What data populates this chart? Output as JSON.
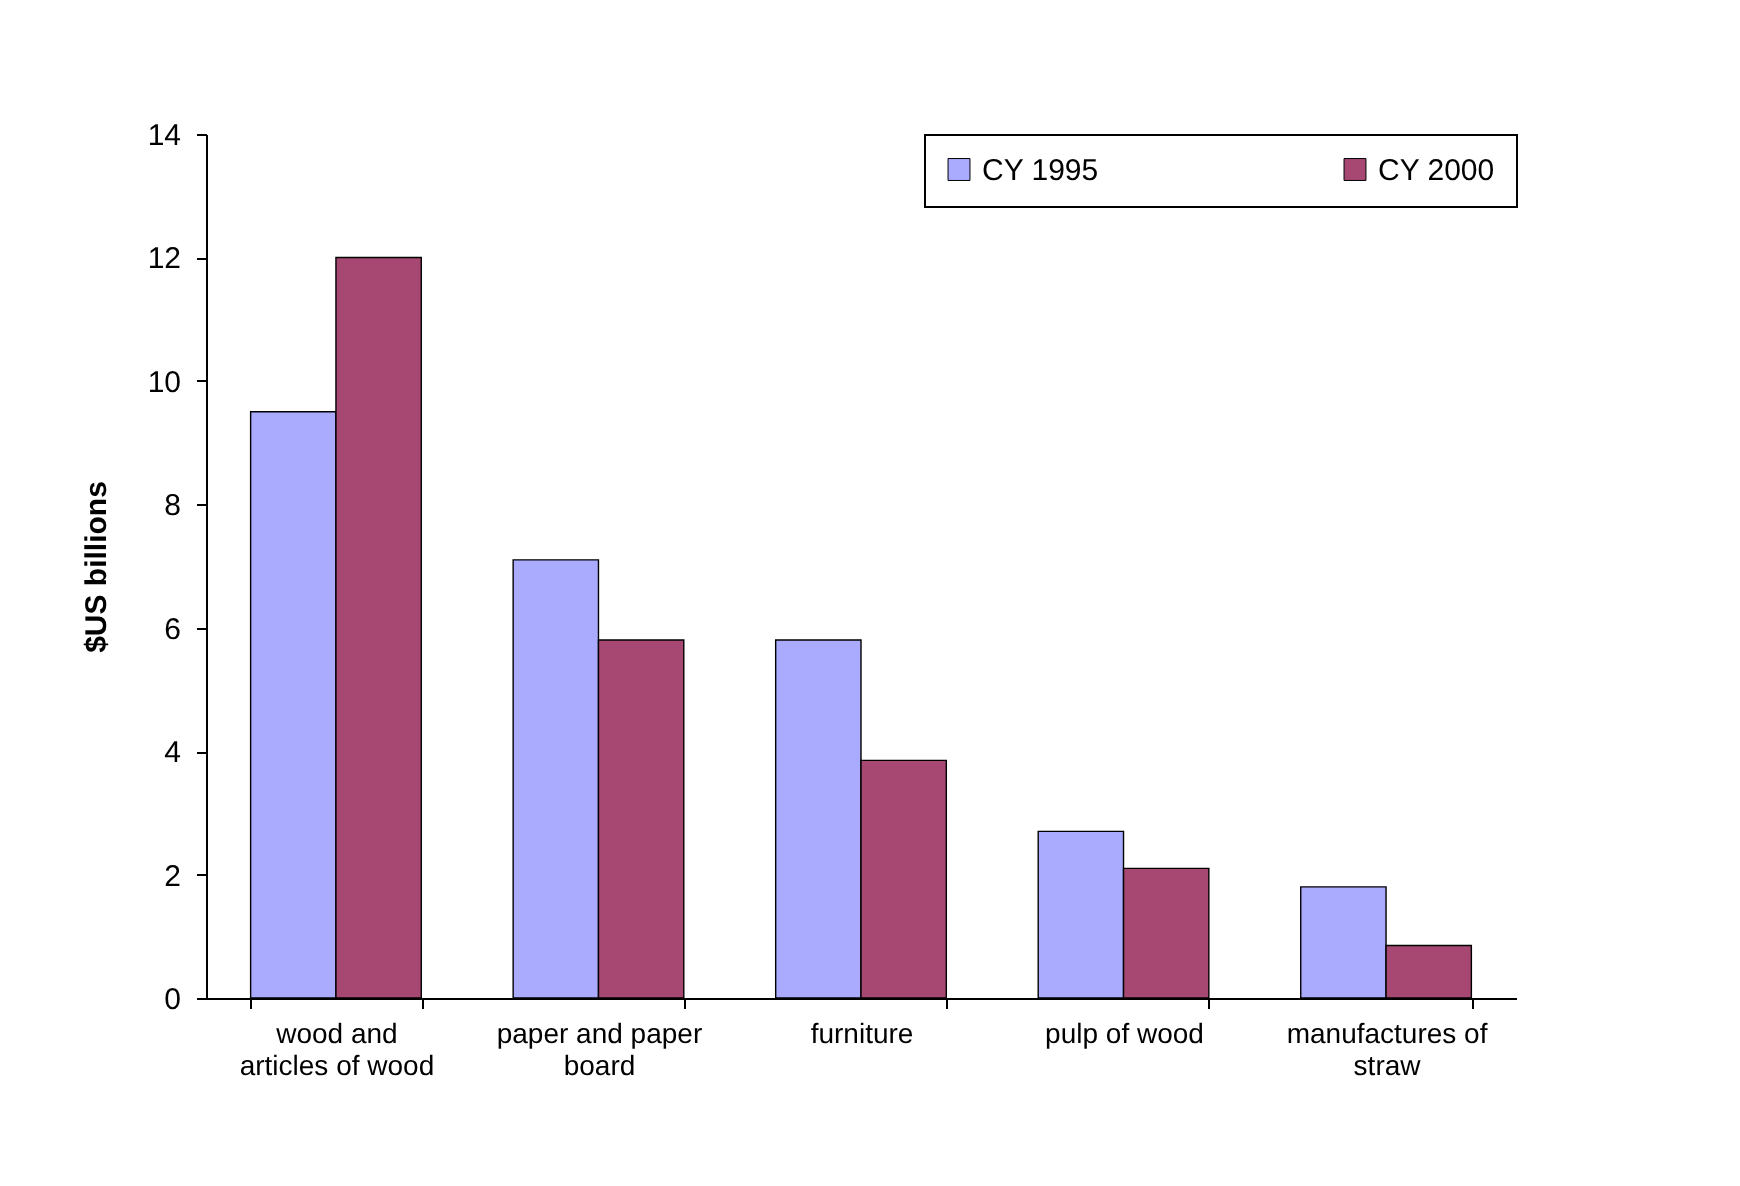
{
  "chart_data": {
    "type": "bar",
    "ylabel": "$US billions",
    "categories": [
      "wood and articles of wood",
      "paper and paper board",
      "furniture",
      "pulp of wood",
      "manufactures of straw"
    ],
    "series": [
      {
        "name": "CY 1995",
        "color": "#aaaaff",
        "values": [
          9.5,
          7.1,
          5.8,
          2.7,
          1.8
        ]
      },
      {
        "name": "CY 2000",
        "color": "#a64872",
        "values": [
          12.0,
          5.8,
          3.85,
          2.1,
          0.85
        ]
      }
    ],
    "ylim": [
      0,
      14
    ],
    "yticks": [
      0,
      2,
      4,
      6,
      8,
      10,
      12,
      14
    ],
    "grid": false,
    "legend": "top right"
  }
}
